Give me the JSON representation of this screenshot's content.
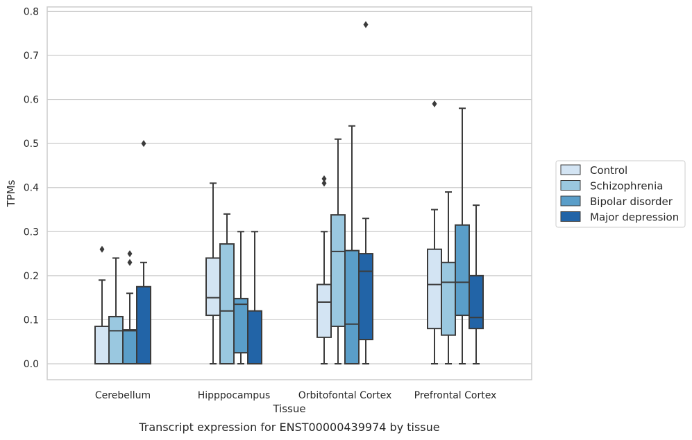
{
  "chart_data": {
    "type": "box",
    "title": "",
    "caption": "Transcript expression for ENST00000439974 by tissue",
    "xlabel": "Tissue",
    "ylabel": "TPMs",
    "ylim": [
      -0.038,
      0.812
    ],
    "yticks": [
      0.0,
      0.1,
      0.2,
      0.3,
      0.4,
      0.5,
      0.6,
      0.7,
      0.8
    ],
    "ytick_labels": [
      "0.0",
      "0.1",
      "0.2",
      "0.3",
      "0.4",
      "0.5",
      "0.6",
      "0.7",
      "0.8"
    ],
    "grid": true,
    "legend_position": "right",
    "categories": [
      "Cerebellum",
      "Hipppocampus",
      "Orbitofontal Cortex",
      "Prefrontal Cortex"
    ],
    "series": [
      {
        "name": "Control",
        "color": "#d3e4f3",
        "boxes": [
          {
            "whislo": 0.0,
            "q1": 0.0,
            "med": 0.0,
            "q3": 0.085,
            "whishi": 0.19,
            "fliers": [
              0.26
            ]
          },
          {
            "whislo": 0.0,
            "q1": 0.11,
            "med": 0.15,
            "q3": 0.24,
            "whishi": 0.41,
            "fliers": []
          },
          {
            "whislo": 0.0,
            "q1": 0.06,
            "med": 0.14,
            "q3": 0.18,
            "whishi": 0.3,
            "fliers": [
              0.41,
              0.42
            ]
          },
          {
            "whislo": 0.0,
            "q1": 0.08,
            "med": 0.18,
            "q3": 0.26,
            "whishi": 0.35,
            "fliers": [
              0.59
            ]
          }
        ]
      },
      {
        "name": "Schizophrenia",
        "color": "#9ac8e0",
        "boxes": [
          {
            "whislo": 0.0,
            "q1": 0.0,
            "med": 0.075,
            "q3": 0.107,
            "whishi": 0.24,
            "fliers": []
          },
          {
            "whislo": 0.0,
            "q1": 0.0,
            "med": 0.12,
            "q3": 0.272,
            "whishi": 0.34,
            "fliers": []
          },
          {
            "whislo": 0.0,
            "q1": 0.085,
            "med": 0.255,
            "q3": 0.338,
            "whishi": 0.51,
            "fliers": []
          },
          {
            "whislo": 0.0,
            "q1": 0.065,
            "med": 0.185,
            "q3": 0.23,
            "whishi": 0.39,
            "fliers": []
          }
        ]
      },
      {
        "name": "Bipolar disorder",
        "color": "#5a9ec9",
        "boxes": [
          {
            "whislo": 0.0,
            "q1": 0.0,
            "med": 0.075,
            "q3": 0.077,
            "whishi": 0.16,
            "fliers": [
              0.23,
              0.25
            ]
          },
          {
            "whislo": 0.0,
            "q1": 0.025,
            "med": 0.135,
            "q3": 0.148,
            "whishi": 0.3,
            "fliers": []
          },
          {
            "whislo": 0.0,
            "q1": 0.0,
            "med": 0.09,
            "q3": 0.257,
            "whishi": 0.54,
            "fliers": []
          },
          {
            "whislo": 0.0,
            "q1": 0.11,
            "med": 0.185,
            "q3": 0.315,
            "whishi": 0.58,
            "fliers": []
          }
        ]
      },
      {
        "name": "Major depression",
        "color": "#2264a7",
        "boxes": [
          {
            "whislo": 0.0,
            "q1": 0.0,
            "med": 0.0,
            "q3": 0.175,
            "whishi": 0.23,
            "fliers": [
              0.5
            ]
          },
          {
            "whislo": 0.0,
            "q1": 0.0,
            "med": 0.0,
            "q3": 0.12,
            "whishi": 0.3,
            "fliers": []
          },
          {
            "whislo": 0.0,
            "q1": 0.055,
            "med": 0.21,
            "q3": 0.25,
            "whishi": 0.33,
            "fliers": [
              0.77
            ]
          },
          {
            "whislo": 0.0,
            "q1": 0.08,
            "med": 0.105,
            "q3": 0.2,
            "whishi": 0.36,
            "fliers": []
          }
        ]
      }
    ]
  }
}
